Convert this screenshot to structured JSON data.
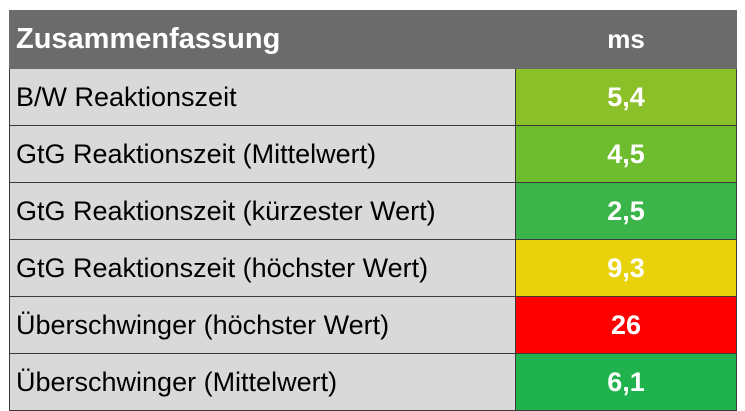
{
  "table": {
    "header": {
      "label": "Zusammenfassung",
      "unit": "ms"
    },
    "rows": [
      {
        "label": "B/W Reaktionszeit",
        "value": "5,4",
        "color": "#8cc028"
      },
      {
        "label": "GtG Reaktionszeit (Mittelwert)",
        "value": "4,5",
        "color": "#6dbd2e"
      },
      {
        "label": "GtG Reaktionszeit (kürzester Wert)",
        "value": "2,5",
        "color": "#3bb54a"
      },
      {
        "label": "GtG Reaktionszeit (höchster Wert)",
        "value": "9,3",
        "color": "#e8d20c"
      },
      {
        "label": "Überschwinger (höchster Wert)",
        "value": "26",
        "color": "#ff0000"
      },
      {
        "label": "Überschwinger (Mittelwert)",
        "value": "6,1",
        "color": "#20b24c"
      }
    ]
  }
}
